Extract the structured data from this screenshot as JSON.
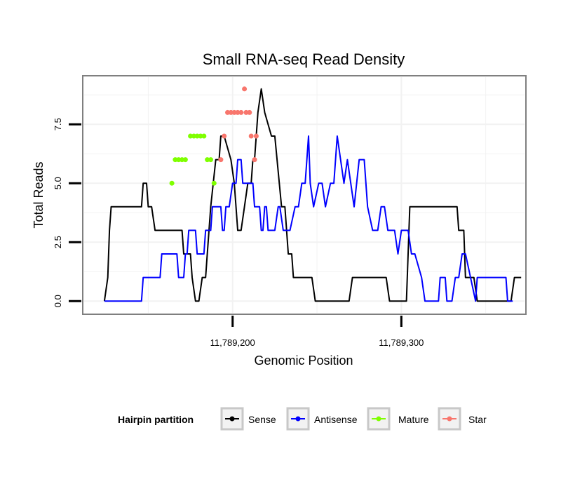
{
  "chart_data": {
    "type": "line",
    "title": "Small RNA-seq Read Density",
    "xlabel": "Genomic Position",
    "ylabel": "Total Reads",
    "xlim": [
      11789112,
      11789373
    ],
    "ylim": [
      -0.5,
      9.5
    ],
    "x_ticks": [
      {
        "value": 11789200,
        "label": "11,789,200"
      },
      {
        "value": 11789300,
        "label": "11,789,300"
      }
    ],
    "y_ticks": [
      {
        "value": 0,
        "label": "0.0"
      },
      {
        "value": 2.5,
        "label": "2.5"
      },
      {
        "value": 5,
        "label": "5.0"
      },
      {
        "value": 7.5,
        "label": "7.5"
      }
    ],
    "grid": true,
    "legend": {
      "title": "Hairpin partition",
      "position": "bottom",
      "entries": [
        {
          "name": "Sense",
          "color": "#000000"
        },
        {
          "name": "Antisense",
          "color": "#0000ff"
        },
        {
          "name": "Mature",
          "color": "#7fff00"
        },
        {
          "name": "Star",
          "color": "#f8766d"
        }
      ]
    },
    "series": [
      {
        "name": "Sense",
        "color": "#000000",
        "style": "line",
        "x": [
          11789124,
          11789126,
          11789127,
          11789128,
          11789130,
          11789146,
          11789147,
          11789149,
          11789150,
          11789152,
          11789154,
          11789170,
          11789171,
          11789175,
          11789176,
          11789178,
          11789180,
          11789182,
          11789184,
          11789185,
          11789187,
          11789190,
          11789192,
          11789193,
          11789195,
          11789199,
          11789201,
          11789203,
          11789205,
          11789207,
          11789209,
          11789211,
          11789212,
          11789213,
          11789215,
          11789217,
          11789219,
          11789223,
          11789225,
          11789229,
          11789231,
          11789233,
          11789235,
          11789236,
          11789247,
          11789249,
          11789269,
          11789271,
          11789291,
          11789293,
          11789303,
          11789305,
          11789314,
          11789315,
          11789320,
          11789321,
          11789333,
          11789334,
          11789337,
          11789338,
          11789343,
          11789345,
          11789365,
          11789367,
          11789371
        ],
        "y": [
          0,
          1,
          3,
          4,
          4,
          4,
          5,
          5,
          4,
          4,
          3,
          3,
          2,
          2,
          1,
          0,
          0,
          1,
          1,
          2,
          4,
          6,
          6,
          7,
          7,
          6,
          5,
          3,
          3,
          4,
          5,
          5,
          6,
          6,
          8,
          9,
          8,
          7,
          7,
          4,
          4,
          2,
          2,
          1,
          1,
          0,
          0,
          1,
          1,
          0,
          0,
          4,
          4,
          4,
          4,
          4,
          4,
          3,
          3,
          1,
          1,
          0,
          0,
          1,
          1
        ]
      },
      {
        "name": "Antisense",
        "color": "#0000ff",
        "style": "line",
        "x": [
          11789124,
          11789146,
          11789147,
          11789157,
          11789158,
          11789167,
          11789168,
          11789171,
          11789172,
          11789173,
          11789174,
          11789178,
          11789179,
          11789183,
          11789184,
          11789187,
          11789188,
          11789193,
          11789194,
          11789195,
          11789196,
          11789198,
          11789200,
          11789202,
          11789203,
          11789205,
          11789206,
          11789212,
          11789213,
          11789216,
          11789217,
          11789218,
          11789219,
          11789220,
          11789221,
          11789225,
          11789227,
          11789228,
          11789230,
          11789234,
          11789237,
          11789239,
          11789241,
          11789243,
          11789245,
          11789246,
          11789248,
          11789251,
          11789253,
          11789255,
          11789258,
          11789260,
          11789262,
          11789264,
          11789266,
          11789268,
          11789270,
          11789272,
          11789275,
          11789278,
          11789280,
          11789283,
          11789286,
          11789288,
          11789290,
          11789292,
          11789294,
          11789296,
          11789298,
          11789300,
          11789302,
          11789304,
          11789306,
          11789308,
          11789312,
          11789314,
          11789318,
          11789322,
          11789323,
          11789326,
          11789327,
          11789330,
          11789332,
          11789334,
          11789336,
          11789338,
          11789344,
          11789345,
          11789362,
          11789363,
          11789366
        ],
        "y": [
          0,
          0,
          1,
          1,
          2,
          2,
          1,
          1,
          2,
          2,
          3,
          3,
          2,
          2,
          3,
          3,
          4,
          4,
          3,
          3,
          4,
          4,
          5,
          5,
          6,
          6,
          5,
          5,
          4,
          4,
          3,
          3,
          4,
          4,
          3,
          3,
          4,
          4,
          3,
          3,
          4,
          4,
          5,
          5,
          7,
          5,
          4,
          5,
          5,
          4,
          5,
          5,
          7,
          6,
          5,
          6,
          5,
          4,
          6,
          6,
          4,
          3,
          3,
          4,
          4,
          3,
          3,
          3,
          2,
          3,
          3,
          3,
          2,
          2,
          1,
          0,
          0,
          0,
          1,
          1,
          0,
          0,
          1,
          1,
          2,
          2,
          0,
          1,
          1,
          0,
          0
        ]
      },
      {
        "name": "Mature",
        "color": "#7fff00",
        "style": "points",
        "x": [
          11789164,
          11789166,
          11789168,
          11789170,
          11789172,
          11789175,
          11789177,
          11789179,
          11789181,
          11789183,
          11789185,
          11789187,
          11789189
        ],
        "y": [
          5,
          6,
          6,
          6,
          6,
          7,
          7,
          7,
          7,
          7,
          6,
          6,
          5
        ]
      },
      {
        "name": "Star",
        "color": "#f8766d",
        "style": "points",
        "x": [
          11789193,
          11789195,
          11789197,
          11789199,
          11789201,
          11789203,
          11789205,
          11789207,
          11789208,
          11789210,
          11789211,
          11789213,
          11789214
        ],
        "y": [
          6,
          7,
          8,
          8,
          8,
          8,
          8,
          9,
          8,
          8,
          7,
          6,
          7
        ]
      }
    ]
  }
}
